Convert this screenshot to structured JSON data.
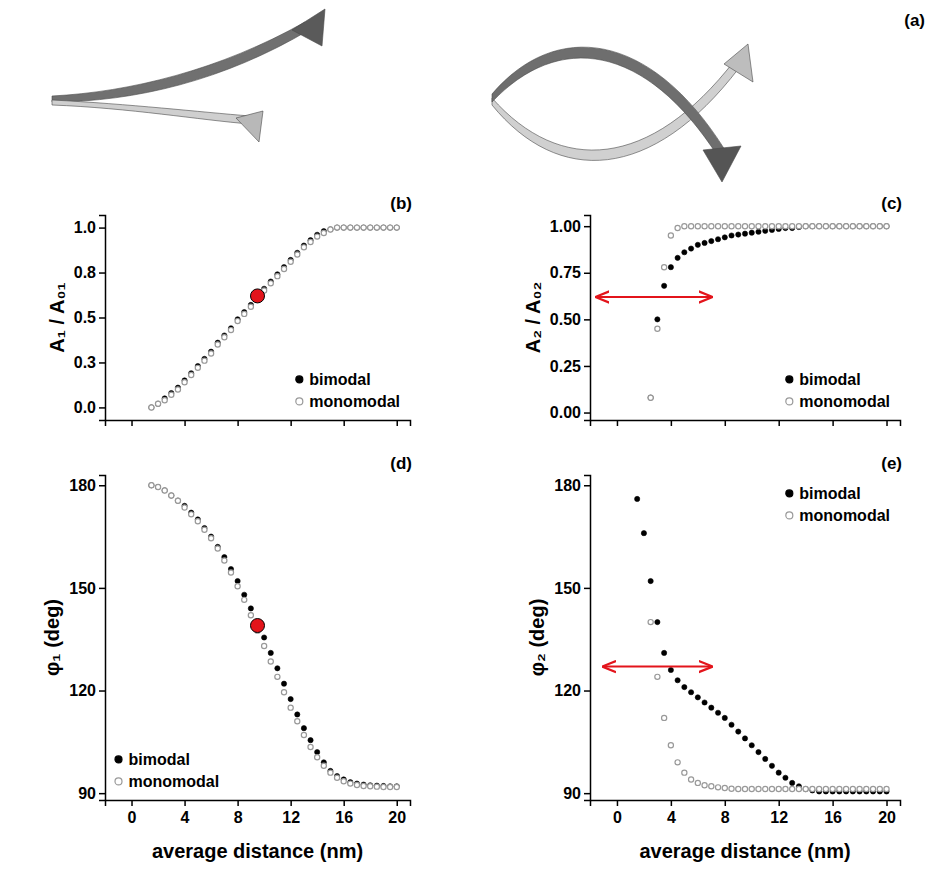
{
  "panel_a": {
    "label": "(a)"
  },
  "chart_data": [
    {
      "type": "scatter",
      "title": "(b)",
      "ylabel": "A₁ / A₀₁",
      "x": [
        1.5,
        2,
        2.5,
        3,
        3.5,
        4,
        4.5,
        5,
        5.5,
        6,
        6.5,
        7,
        7.5,
        8,
        8.5,
        9,
        9.5,
        10,
        10.5,
        11,
        11.5,
        12,
        12.5,
        13,
        13.5,
        14,
        14.5,
        15,
        15.5,
        16,
        16.5,
        17,
        17.5,
        18,
        18.5,
        19,
        19.5,
        20
      ],
      "xlim": [
        -2,
        21
      ],
      "xticks": [
        0,
        4,
        8,
        12,
        16,
        20
      ],
      "ylim": [
        -0.07,
        1.07
      ],
      "yticks": [
        {
          "value": 0,
          "label": "0.0"
        },
        {
          "value": 0.25,
          "label": "0.3"
        },
        {
          "value": 0.5,
          "label": "0.5"
        },
        {
          "value": 0.75,
          "label": "0.8"
        },
        {
          "value": 1,
          "label": "1.0"
        }
      ],
      "tick_labels": "y",
      "legend": "lower right",
      "series": [
        {
          "name": "bimodal",
          "color": "#000000",
          "marker": "filled-circle",
          "values": [
            0.0,
            0.02,
            0.05,
            0.08,
            0.11,
            0.15,
            0.19,
            0.23,
            0.27,
            0.31,
            0.36,
            0.4,
            0.44,
            0.49,
            0.53,
            0.57,
            0.62,
            0.66,
            0.7,
            0.74,
            0.78,
            0.82,
            0.86,
            0.9,
            0.93,
            0.96,
            0.98,
            0.99,
            1.0,
            1.0,
            1.0,
            1.0,
            1.0,
            1.0,
            1.0,
            1.0,
            1.0,
            1.0
          ]
        },
        {
          "name": "monomodal",
          "color": "#999999",
          "marker": "open-circle",
          "values": [
            0.0,
            0.02,
            0.04,
            0.07,
            0.1,
            0.14,
            0.18,
            0.22,
            0.26,
            0.3,
            0.35,
            0.39,
            0.43,
            0.48,
            0.52,
            0.56,
            0.61,
            0.65,
            0.69,
            0.73,
            0.77,
            0.81,
            0.85,
            0.89,
            0.92,
            0.95,
            0.97,
            0.99,
            1.0,
            1.0,
            1.0,
            1.0,
            1.0,
            1.0,
            1.0,
            1.0,
            1.0,
            1.0
          ]
        }
      ],
      "highlight": {
        "x": 9.5,
        "y": 0.62,
        "color": "#e3141b"
      }
    },
    {
      "type": "scatter",
      "title": "(c)",
      "ylabel": "A₂ / A₀₂",
      "x": [
        1.5,
        2,
        2.5,
        3,
        3.5,
        4,
        4.5,
        5,
        5.5,
        6,
        6.5,
        7,
        7.5,
        8,
        8.5,
        9,
        9.5,
        10,
        10.5,
        11,
        11.5,
        12,
        12.5,
        13,
        13.5,
        14,
        14.5,
        15,
        15.5,
        16,
        16.5,
        17,
        17.5,
        18,
        18.5,
        19,
        19.5,
        20
      ],
      "xlim": [
        -2,
        21
      ],
      "xticks": [
        0,
        4,
        8,
        12,
        16,
        20
      ],
      "ylim": [
        -0.04,
        1.06
      ],
      "yticks": [
        {
          "value": 0,
          "label": "0.00"
        },
        {
          "value": 0.25,
          "label": "0.25"
        },
        {
          "value": 0.5,
          "label": "0.50"
        },
        {
          "value": 0.75,
          "label": "0.75"
        },
        {
          "value": 1,
          "label": "1.00"
        }
      ],
      "tick_labels": "y",
      "legend": "lower right",
      "series": [
        {
          "name": "bimodal",
          "color": "#000000",
          "marker": "filled-circle",
          "values": [
            null,
            null,
            0.08,
            0.5,
            0.68,
            0.78,
            0.83,
            0.86,
            0.88,
            0.9,
            0.91,
            0.92,
            0.93,
            0.94,
            0.95,
            0.955,
            0.96,
            0.965,
            0.97,
            0.975,
            0.98,
            0.985,
            0.99,
            0.99,
            0.995,
            1.0,
            1.0,
            1.0,
            1.0,
            1.0,
            1.0,
            1.0,
            1.0,
            1.0,
            1.0,
            1.0,
            1.0,
            1.0
          ]
        },
        {
          "name": "monomodal",
          "color": "#999999",
          "marker": "open-circle",
          "values": [
            null,
            null,
            0.08,
            0.45,
            0.78,
            0.95,
            0.99,
            1.0,
            1.0,
            1.0,
            1.0,
            1.0,
            1.0,
            1.0,
            1.0,
            1.0,
            1.0,
            1.0,
            1.0,
            1.0,
            1.0,
            1.0,
            1.0,
            1.0,
            1.0,
            1.0,
            1.0,
            1.0,
            1.0,
            1.0,
            1.0,
            1.0,
            1.0,
            1.0,
            1.0,
            1.0,
            1.0,
            1.0
          ]
        }
      ],
      "arrow": {
        "x": [
          -1.5,
          7
        ],
        "y": 0.62,
        "color": "#e3141b"
      }
    },
    {
      "type": "scatter",
      "title": "(d)",
      "xlabel": "average distance (nm)",
      "ylabel": "φ₁ (deg)",
      "x": [
        1.5,
        2,
        2.5,
        3,
        3.5,
        4,
        4.5,
        5,
        5.5,
        6,
        6.5,
        7,
        7.5,
        8,
        8.5,
        9,
        9.5,
        10,
        10.5,
        11,
        11.5,
        12,
        12.5,
        13,
        13.5,
        14,
        14.5,
        15,
        15.5,
        16,
        16.5,
        17,
        17.5,
        18,
        18.5,
        19,
        19.5,
        20
      ],
      "xlim": [
        -2,
        21
      ],
      "xticks": [
        0,
        4,
        8,
        12,
        16,
        20
      ],
      "ylim": [
        88,
        183
      ],
      "yticks": [
        90,
        120,
        150,
        180
      ],
      "legend": "lower left",
      "series": [
        {
          "name": "bimodal",
          "color": "#000000",
          "marker": "filled-circle",
          "values": [
            180,
            179.5,
            178.5,
            177,
            175.5,
            174,
            172,
            170,
            167.5,
            165,
            162,
            159,
            155.5,
            152,
            148,
            144,
            139,
            135.5,
            131,
            126.5,
            122,
            117.5,
            113,
            109,
            105.5,
            102,
            99,
            96.5,
            95,
            94,
            93.2,
            92.8,
            92.5,
            92.3,
            92.2,
            92.1,
            92,
            92
          ]
        },
        {
          "name": "monomodal",
          "color": "#999999",
          "marker": "open-circle",
          "values": [
            180,
            179.5,
            178.5,
            177,
            175.5,
            173.5,
            171.5,
            169.5,
            167,
            164.5,
            161.5,
            158,
            154.5,
            150.5,
            146.5,
            142,
            137.5,
            133,
            128.5,
            124,
            119.5,
            115,
            111,
            107,
            103.5,
            100.5,
            98,
            96,
            94.5,
            93.5,
            92.8,
            92.4,
            92.1,
            92,
            91.9,
            91.8,
            91.8,
            91.8
          ]
        }
      ],
      "highlight": {
        "x": 9.5,
        "y": 139,
        "color": "#e3141b"
      }
    },
    {
      "type": "scatter",
      "title": "(e)",
      "xlabel": "average distance (nm)",
      "ylabel": "φ₂ (deg)",
      "x": [
        1.5,
        2,
        2.5,
        3,
        3.5,
        4,
        4.5,
        5,
        5.5,
        6,
        6.5,
        7,
        7.5,
        8,
        8.5,
        9,
        9.5,
        10,
        10.5,
        11,
        11.5,
        12,
        12.5,
        13,
        13.5,
        14,
        14.5,
        15,
        15.5,
        16,
        16.5,
        17,
        17.5,
        18,
        18.5,
        19,
        19.5,
        20
      ],
      "xlim": [
        -2,
        21
      ],
      "xticks": [
        0,
        4,
        8,
        12,
        16,
        20
      ],
      "ylim": [
        88,
        183
      ],
      "yticks": [
        90,
        120,
        150,
        180
      ],
      "legend": "upper right",
      "series": [
        {
          "name": "bimodal",
          "color": "#000000",
          "marker": "filled-circle",
          "values": [
            176,
            166,
            152,
            140,
            131,
            126,
            123,
            121,
            119.5,
            118,
            116.5,
            115,
            113.5,
            112,
            110,
            108,
            106,
            104,
            102,
            100,
            98,
            96,
            94.5,
            93,
            92,
            91.2,
            90.8,
            90.5,
            90.5,
            90.5,
            90.5,
            90.5,
            90.5,
            90.5,
            90.5,
            90.5,
            90.5,
            90.5
          ]
        },
        {
          "name": "monomodal",
          "color": "#999999",
          "marker": "open-circle",
          "values": [
            null,
            null,
            140,
            124,
            112,
            104,
            99,
            96,
            94,
            93,
            92.3,
            92,
            91.7,
            91.5,
            91.3,
            91.2,
            91.2,
            91.2,
            91.2,
            91.2,
            91.2,
            91.2,
            91.2,
            91.2,
            91.2,
            91.2,
            91.2,
            91.2,
            91.2,
            91.2,
            91.2,
            91.2,
            91.2,
            91.2,
            91.2,
            91.2,
            91.2,
            91.2
          ]
        }
      ],
      "arrow": {
        "x": [
          -1,
          7
        ],
        "y": 127,
        "color": "#e3141b"
      }
    }
  ]
}
